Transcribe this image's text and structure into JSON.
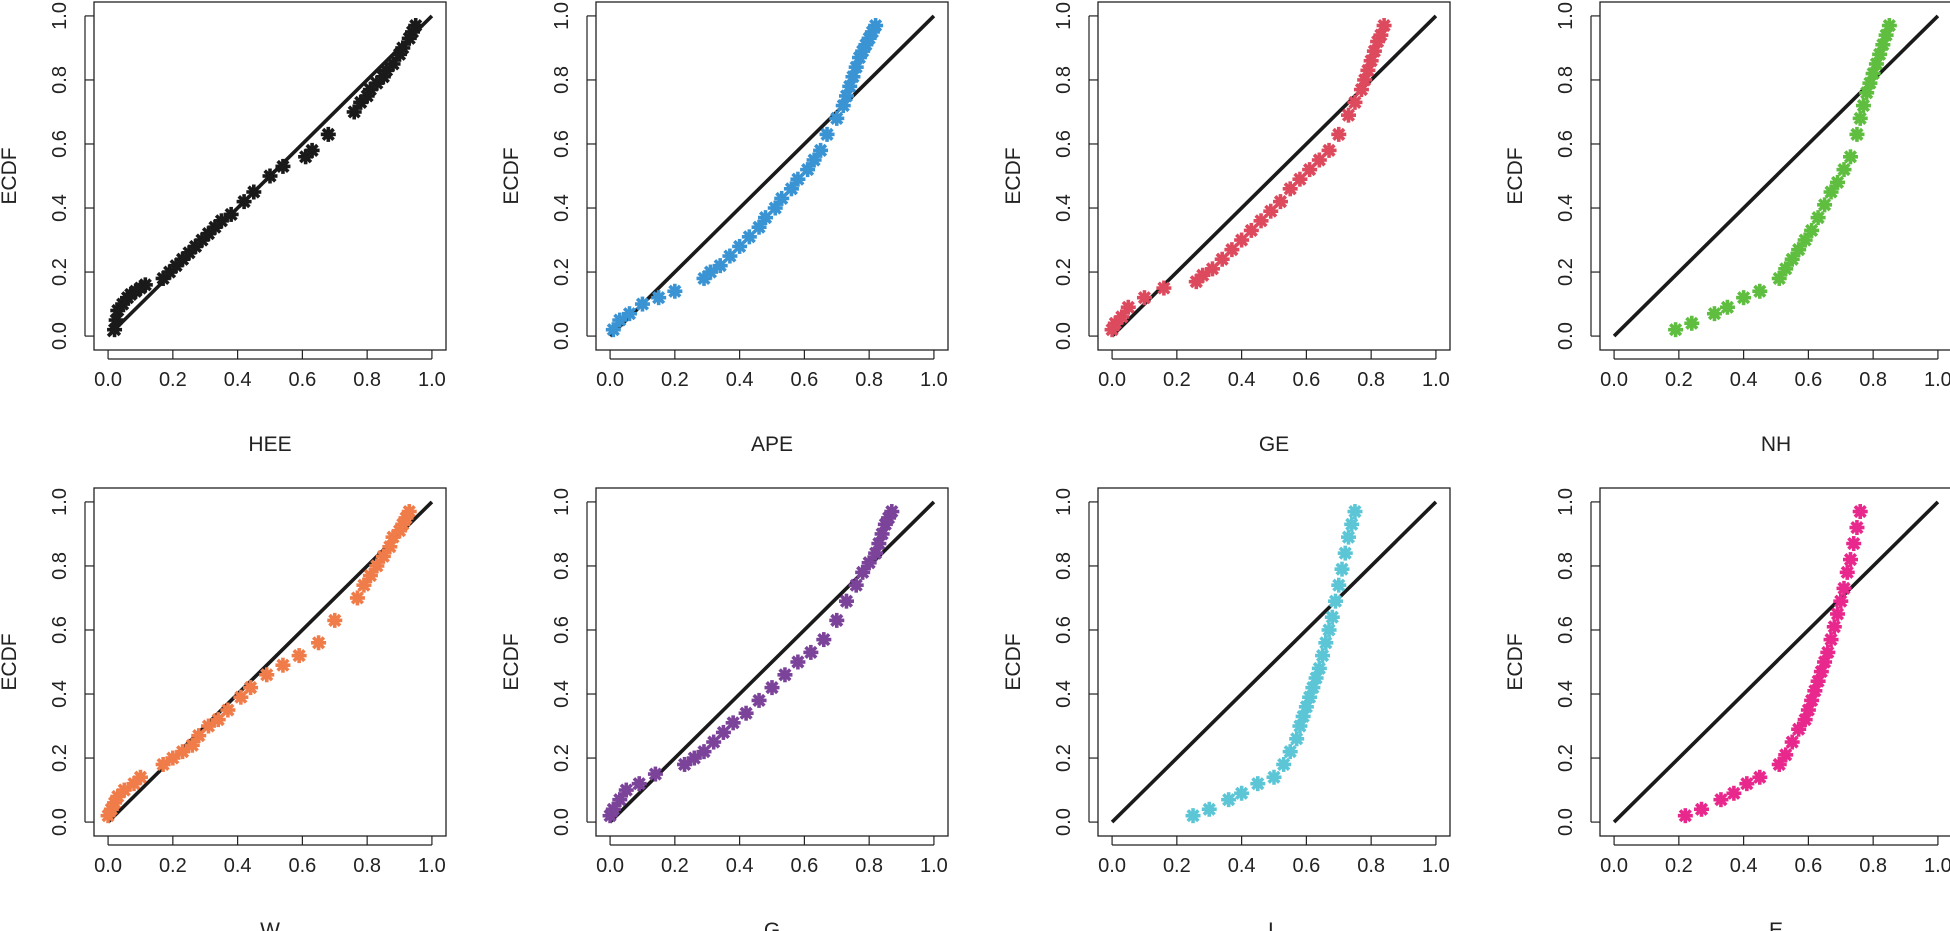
{
  "chart_data": [
    {
      "type": "scatter",
      "title": "",
      "xlabel": "HEE",
      "ylabel": "ECDF",
      "xlim": [
        0,
        1
      ],
      "ylim": [
        0,
        1
      ],
      "x_ticks": [
        "0.0",
        "0.2",
        "0.4",
        "0.6",
        "0.8",
        "1.0"
      ],
      "y_ticks": [
        "0.0",
        "0.2",
        "0.4",
        "0.6",
        "0.8",
        "1.0"
      ],
      "marker": "asterisk",
      "color": "#1a1a1a",
      "reference_line": {
        "from": [
          0,
          0
        ],
        "to": [
          1,
          1
        ]
      },
      "series": [
        {
          "name": "HEE",
          "x": [
            0.02,
            0.025,
            0.03,
            0.045,
            0.06,
            0.07,
            0.085,
            0.1,
            0.115,
            0.17,
            0.19,
            0.21,
            0.23,
            0.25,
            0.27,
            0.29,
            0.31,
            0.33,
            0.35,
            0.38,
            0.42,
            0.45,
            0.5,
            0.54,
            0.61,
            0.63,
            0.68,
            0.76,
            0.78,
            0.8,
            0.81,
            0.83,
            0.85,
            0.86,
            0.88,
            0.9,
            0.91,
            0.93,
            0.94,
            0.95
          ],
          "y": [
            0.02,
            0.05,
            0.08,
            0.1,
            0.12,
            0.13,
            0.14,
            0.15,
            0.16,
            0.18,
            0.2,
            0.22,
            0.24,
            0.26,
            0.28,
            0.3,
            0.32,
            0.34,
            0.36,
            0.38,
            0.42,
            0.45,
            0.5,
            0.53,
            0.56,
            0.58,
            0.63,
            0.7,
            0.73,
            0.75,
            0.77,
            0.79,
            0.81,
            0.83,
            0.85,
            0.88,
            0.9,
            0.93,
            0.95,
            0.97
          ]
        }
      ]
    },
    {
      "type": "scatter",
      "title": "",
      "xlabel": "APE",
      "ylabel": "ECDF",
      "xlim": [
        0,
        1
      ],
      "ylim": [
        0,
        1
      ],
      "x_ticks": [
        "0.0",
        "0.2",
        "0.4",
        "0.6",
        "0.8",
        "1.0"
      ],
      "y_ticks": [
        "0.0",
        "0.2",
        "0.4",
        "0.6",
        "0.8",
        "1.0"
      ],
      "marker": "asterisk",
      "color": "#3a94d4",
      "reference_line": {
        "from": [
          0,
          0
        ],
        "to": [
          1,
          1
        ]
      },
      "series": [
        {
          "name": "APE",
          "x": [
            0.01,
            0.03,
            0.06,
            0.1,
            0.15,
            0.2,
            0.29,
            0.31,
            0.34,
            0.37,
            0.4,
            0.43,
            0.46,
            0.48,
            0.51,
            0.53,
            0.56,
            0.58,
            0.61,
            0.63,
            0.65,
            0.67,
            0.7,
            0.72,
            0.73,
            0.74,
            0.75,
            0.76,
            0.77,
            0.78,
            0.79,
            0.8,
            0.81,
            0.82
          ],
          "y": [
            0.02,
            0.05,
            0.07,
            0.1,
            0.12,
            0.14,
            0.18,
            0.2,
            0.22,
            0.25,
            0.28,
            0.31,
            0.34,
            0.37,
            0.4,
            0.43,
            0.46,
            0.49,
            0.52,
            0.55,
            0.58,
            0.63,
            0.68,
            0.72,
            0.75,
            0.78,
            0.81,
            0.84,
            0.87,
            0.89,
            0.91,
            0.93,
            0.95,
            0.97
          ]
        }
      ]
    },
    {
      "type": "scatter",
      "title": "",
      "xlabel": "GE",
      "ylabel": "ECDF",
      "xlim": [
        0,
        1
      ],
      "ylim": [
        0,
        1
      ],
      "x_ticks": [
        "0.0",
        "0.2",
        "0.4",
        "0.6",
        "0.8",
        "1.0"
      ],
      "y_ticks": [
        "0.0",
        "0.2",
        "0.4",
        "0.6",
        "0.8",
        "1.0"
      ],
      "marker": "asterisk",
      "color": "#dd4a5e",
      "reference_line": {
        "from": [
          0,
          0
        ],
        "to": [
          1,
          1
        ]
      },
      "series": [
        {
          "name": "GE",
          "x": [
            0.0,
            0.01,
            0.03,
            0.05,
            0.1,
            0.16,
            0.26,
            0.28,
            0.31,
            0.34,
            0.37,
            0.4,
            0.43,
            0.46,
            0.49,
            0.52,
            0.55,
            0.58,
            0.61,
            0.64,
            0.67,
            0.7,
            0.73,
            0.75,
            0.77,
            0.78,
            0.79,
            0.8,
            0.81,
            0.82,
            0.83,
            0.84
          ],
          "y": [
            0.02,
            0.04,
            0.06,
            0.09,
            0.12,
            0.15,
            0.17,
            0.19,
            0.21,
            0.24,
            0.27,
            0.3,
            0.33,
            0.36,
            0.39,
            0.42,
            0.46,
            0.49,
            0.52,
            0.55,
            0.58,
            0.63,
            0.69,
            0.73,
            0.77,
            0.8,
            0.83,
            0.86,
            0.89,
            0.92,
            0.94,
            0.97
          ]
        }
      ]
    },
    {
      "type": "scatter",
      "title": "",
      "xlabel": "NH",
      "ylabel": "ECDF",
      "xlim": [
        0,
        1
      ],
      "ylim": [
        0,
        1
      ],
      "x_ticks": [
        "0.0",
        "0.2",
        "0.4",
        "0.6",
        "0.8",
        "1.0"
      ],
      "y_ticks": [
        "0.0",
        "0.2",
        "0.4",
        "0.6",
        "0.8",
        "1.0"
      ],
      "marker": "asterisk",
      "color": "#5fbe3f",
      "reference_line": {
        "from": [
          0,
          0
        ],
        "to": [
          1,
          1
        ]
      },
      "series": [
        {
          "name": "NH",
          "x": [
            0.19,
            0.24,
            0.31,
            0.35,
            0.4,
            0.45,
            0.51,
            0.53,
            0.55,
            0.57,
            0.59,
            0.61,
            0.63,
            0.65,
            0.67,
            0.69,
            0.71,
            0.73,
            0.75,
            0.76,
            0.77,
            0.78,
            0.79,
            0.8,
            0.81,
            0.82,
            0.83,
            0.84,
            0.85
          ],
          "y": [
            0.02,
            0.04,
            0.07,
            0.09,
            0.12,
            0.14,
            0.18,
            0.21,
            0.24,
            0.27,
            0.3,
            0.33,
            0.37,
            0.41,
            0.45,
            0.48,
            0.52,
            0.56,
            0.63,
            0.68,
            0.72,
            0.76,
            0.79,
            0.82,
            0.85,
            0.88,
            0.91,
            0.94,
            0.97
          ]
        }
      ]
    },
    {
      "type": "scatter",
      "title": "",
      "xlabel": "W",
      "ylabel": "ECDF",
      "xlim": [
        0,
        1
      ],
      "ylim": [
        0,
        1
      ],
      "x_ticks": [
        "0.0",
        "0.2",
        "0.4",
        "0.6",
        "0.8",
        "1.0"
      ],
      "y_ticks": [
        "0.0",
        "0.2",
        "0.4",
        "0.6",
        "0.8",
        "1.0"
      ],
      "marker": "asterisk",
      "color": "#f07c4a",
      "reference_line": {
        "from": [
          0,
          0
        ],
        "to": [
          1,
          1
        ]
      },
      "series": [
        {
          "name": "W",
          "x": [
            0.0,
            0.01,
            0.02,
            0.03,
            0.05,
            0.08,
            0.1,
            0.17,
            0.2,
            0.23,
            0.26,
            0.28,
            0.31,
            0.34,
            0.37,
            0.41,
            0.44,
            0.49,
            0.54,
            0.59,
            0.65,
            0.7,
            0.77,
            0.79,
            0.81,
            0.83,
            0.85,
            0.87,
            0.88,
            0.9,
            0.91,
            0.92,
            0.93
          ],
          "y": [
            0.02,
            0.04,
            0.06,
            0.08,
            0.1,
            0.12,
            0.14,
            0.18,
            0.2,
            0.22,
            0.24,
            0.27,
            0.3,
            0.32,
            0.35,
            0.39,
            0.42,
            0.46,
            0.49,
            0.52,
            0.56,
            0.63,
            0.7,
            0.74,
            0.77,
            0.8,
            0.83,
            0.86,
            0.89,
            0.91,
            0.93,
            0.95,
            0.97
          ]
        }
      ]
    },
    {
      "type": "scatter",
      "title": "",
      "xlabel": "G",
      "ylabel": "ECDF",
      "xlim": [
        0,
        1
      ],
      "ylim": [
        0,
        1
      ],
      "x_ticks": [
        "0.0",
        "0.2",
        "0.4",
        "0.6",
        "0.8",
        "1.0"
      ],
      "y_ticks": [
        "0.0",
        "0.2",
        "0.4",
        "0.6",
        "0.8",
        "1.0"
      ],
      "marker": "asterisk",
      "color": "#7b4399",
      "reference_line": {
        "from": [
          0,
          0
        ],
        "to": [
          1,
          1
        ]
      },
      "series": [
        {
          "name": "G",
          "x": [
            0.0,
            0.01,
            0.03,
            0.05,
            0.09,
            0.14,
            0.23,
            0.26,
            0.29,
            0.32,
            0.35,
            0.38,
            0.42,
            0.46,
            0.5,
            0.54,
            0.58,
            0.62,
            0.66,
            0.7,
            0.73,
            0.76,
            0.78,
            0.8,
            0.82,
            0.83,
            0.84,
            0.85,
            0.86,
            0.87
          ],
          "y": [
            0.02,
            0.04,
            0.07,
            0.1,
            0.12,
            0.15,
            0.18,
            0.2,
            0.22,
            0.25,
            0.28,
            0.31,
            0.34,
            0.38,
            0.42,
            0.46,
            0.5,
            0.53,
            0.57,
            0.63,
            0.69,
            0.74,
            0.78,
            0.81,
            0.84,
            0.87,
            0.9,
            0.93,
            0.95,
            0.97
          ]
        }
      ]
    },
    {
      "type": "scatter",
      "title": "",
      "xlabel": "L",
      "ylabel": "ECDF",
      "xlim": [
        0,
        1
      ],
      "ylim": [
        0,
        1
      ],
      "x_ticks": [
        "0.0",
        "0.2",
        "0.4",
        "0.6",
        "0.8",
        "1.0"
      ],
      "y_ticks": [
        "0.0",
        "0.2",
        "0.4",
        "0.6",
        "0.8",
        "1.0"
      ],
      "marker": "asterisk",
      "color": "#5cc6d6",
      "reference_line": {
        "from": [
          0,
          0
        ],
        "to": [
          1,
          1
        ]
      },
      "series": [
        {
          "name": "L",
          "x": [
            0.25,
            0.3,
            0.36,
            0.4,
            0.45,
            0.5,
            0.53,
            0.55,
            0.57,
            0.58,
            0.59,
            0.6,
            0.61,
            0.62,
            0.63,
            0.64,
            0.65,
            0.66,
            0.67,
            0.68,
            0.69,
            0.7,
            0.71,
            0.72,
            0.73,
            0.74,
            0.75
          ],
          "y": [
            0.02,
            0.04,
            0.07,
            0.09,
            0.12,
            0.14,
            0.18,
            0.22,
            0.26,
            0.3,
            0.33,
            0.36,
            0.39,
            0.42,
            0.45,
            0.48,
            0.52,
            0.56,
            0.6,
            0.64,
            0.69,
            0.74,
            0.79,
            0.84,
            0.89,
            0.93,
            0.97
          ]
        }
      ]
    },
    {
      "type": "scatter",
      "title": "",
      "xlabel": "E",
      "ylabel": "ECDF",
      "xlim": [
        0,
        1
      ],
      "ylim": [
        0,
        1
      ],
      "x_ticks": [
        "0.0",
        "0.2",
        "0.4",
        "0.6",
        "0.8",
        "1.0"
      ],
      "y_ticks": [
        "0.0",
        "0.2",
        "0.4",
        "0.6",
        "0.8",
        "1.0"
      ],
      "marker": "asterisk",
      "color": "#e8288c",
      "reference_line": {
        "from": [
          0,
          0
        ],
        "to": [
          1,
          1
        ]
      },
      "series": [
        {
          "name": "E",
          "x": [
            0.22,
            0.27,
            0.33,
            0.37,
            0.41,
            0.45,
            0.51,
            0.53,
            0.55,
            0.57,
            0.59,
            0.6,
            0.61,
            0.62,
            0.63,
            0.64,
            0.65,
            0.66,
            0.67,
            0.68,
            0.69,
            0.7,
            0.71,
            0.72,
            0.73,
            0.74,
            0.75,
            0.76
          ],
          "y": [
            0.02,
            0.04,
            0.07,
            0.09,
            0.12,
            0.14,
            0.18,
            0.21,
            0.25,
            0.29,
            0.32,
            0.35,
            0.38,
            0.41,
            0.44,
            0.47,
            0.5,
            0.53,
            0.57,
            0.61,
            0.65,
            0.69,
            0.73,
            0.78,
            0.82,
            0.87,
            0.92,
            0.97
          ]
        }
      ]
    }
  ]
}
